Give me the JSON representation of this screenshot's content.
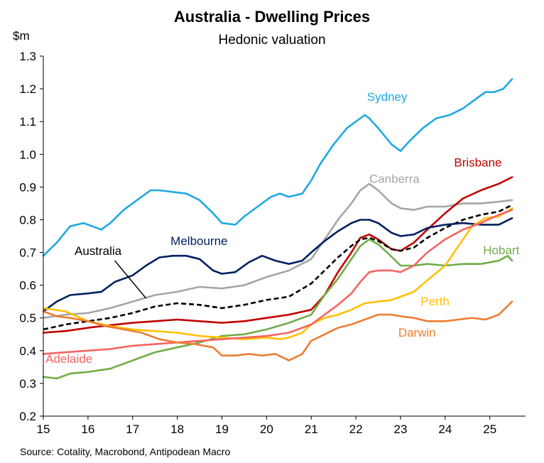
{
  "chart_data": {
    "type": "line",
    "title": "Australia - Dwelling Prices",
    "subtitle": "Hedonic valuation",
    "ylabel": "$m",
    "xlabel": "",
    "source": "Source: Cotality, Macrobond, Antipodean Macro",
    "ylim": [
      0.2,
      1.3
    ],
    "xlim": [
      15,
      25.8
    ],
    "yticks": [
      "0.2",
      "0.3",
      "0.4",
      "0.5",
      "0.6",
      "0.7",
      "0.8",
      "0.9",
      "1.0",
      "1.1",
      "1.2",
      "1.3"
    ],
    "xticks": [
      "15",
      "16",
      "17",
      "18",
      "19",
      "20",
      "21",
      "22",
      "23",
      "24",
      "25"
    ],
    "grid": false,
    "series": [
      {
        "name": "Sydney",
        "color": "#1FA9E1",
        "dashed": false,
        "x": [
          15,
          15.3,
          15.6,
          15.9,
          16.1,
          16.3,
          16.5,
          16.8,
          17.1,
          17.4,
          17.6,
          17.9,
          18.2,
          18.5,
          18.8,
          19.0,
          19.3,
          19.5,
          19.8,
          20.1,
          20.3,
          20.5,
          20.8,
          21.0,
          21.2,
          21.5,
          21.8,
          22.0,
          22.2,
          22.3,
          22.5,
          22.8,
          23.0,
          23.2,
          23.5,
          23.8,
          24.1,
          24.4,
          24.7,
          24.9,
          25.1,
          25.3,
          25.5
        ],
        "y": [
          0.69,
          0.73,
          0.78,
          0.79,
          0.78,
          0.77,
          0.79,
          0.83,
          0.86,
          0.89,
          0.89,
          0.885,
          0.88,
          0.86,
          0.82,
          0.79,
          0.785,
          0.81,
          0.84,
          0.87,
          0.88,
          0.87,
          0.88,
          0.92,
          0.97,
          1.03,
          1.08,
          1.1,
          1.12,
          1.11,
          1.08,
          1.03,
          1.01,
          1.04,
          1.08,
          1.11,
          1.12,
          1.14,
          1.17,
          1.19,
          1.19,
          1.2,
          1.23
        ]
      },
      {
        "name": "Canberra",
        "color": "#A6A6A6",
        "dashed": false,
        "x": [
          15,
          15.5,
          16,
          16.5,
          17,
          17.5,
          18,
          18.5,
          19,
          19.5,
          20,
          20.5,
          21,
          21.3,
          21.6,
          21.9,
          22.1,
          22.3,
          22.5,
          22.8,
          23.0,
          23.3,
          23.6,
          24.0,
          24.4,
          24.8,
          25.2,
          25.5
        ],
        "y": [
          0.5,
          0.51,
          0.515,
          0.53,
          0.55,
          0.57,
          0.58,
          0.595,
          0.59,
          0.6,
          0.625,
          0.645,
          0.68,
          0.74,
          0.8,
          0.85,
          0.89,
          0.91,
          0.89,
          0.85,
          0.835,
          0.83,
          0.84,
          0.84,
          0.85,
          0.85,
          0.855,
          0.86
        ]
      },
      {
        "name": "Brisbane",
        "color": "#C00000",
        "dashed": false,
        "x": [
          15,
          15.5,
          16,
          16.5,
          17,
          17.5,
          18,
          18.5,
          19,
          19.5,
          20,
          20.5,
          21,
          21.3,
          21.6,
          21.9,
          22.1,
          22.3,
          22.5,
          22.8,
          23.0,
          23.3,
          23.6,
          24.0,
          24.4,
          24.8,
          25.2,
          25.5
        ],
        "y": [
          0.455,
          0.46,
          0.47,
          0.478,
          0.485,
          0.49,
          0.495,
          0.49,
          0.485,
          0.49,
          0.5,
          0.51,
          0.525,
          0.57,
          0.64,
          0.7,
          0.745,
          0.755,
          0.74,
          0.71,
          0.705,
          0.73,
          0.77,
          0.82,
          0.865,
          0.89,
          0.91,
          0.93
        ]
      },
      {
        "name": "Australia",
        "color": "#000000",
        "dashed": true,
        "x": [
          15,
          15.5,
          16,
          16.5,
          17,
          17.5,
          18,
          18.5,
          19,
          19.5,
          20,
          20.5,
          21,
          21.3,
          21.6,
          21.9,
          22.1,
          22.3,
          22.5,
          22.8,
          23.0,
          23.3,
          23.6,
          24.0,
          24.4,
          24.8,
          25.2,
          25.5
        ],
        "y": [
          0.465,
          0.48,
          0.49,
          0.5,
          0.515,
          0.535,
          0.545,
          0.54,
          0.53,
          0.54,
          0.555,
          0.565,
          0.605,
          0.645,
          0.685,
          0.72,
          0.74,
          0.745,
          0.735,
          0.71,
          0.705,
          0.715,
          0.745,
          0.775,
          0.8,
          0.815,
          0.825,
          0.845
        ]
      },
      {
        "name": "Melbourne",
        "color": "#002060",
        "dashed": false,
        "x": [
          15,
          15.3,
          15.6,
          16.0,
          16.3,
          16.6,
          17.0,
          17.3,
          17.6,
          17.9,
          18.2,
          18.5,
          18.8,
          19.0,
          19.3,
          19.6,
          19.9,
          20.2,
          20.5,
          20.8,
          21.0,
          21.3,
          21.6,
          21.9,
          22.1,
          22.3,
          22.5,
          22.8,
          23.0,
          23.3,
          23.6,
          24.0,
          24.4,
          24.8,
          25.2,
          25.5
        ],
        "y": [
          0.52,
          0.55,
          0.57,
          0.575,
          0.58,
          0.61,
          0.63,
          0.66,
          0.685,
          0.69,
          0.69,
          0.68,
          0.645,
          0.635,
          0.64,
          0.67,
          0.69,
          0.675,
          0.665,
          0.675,
          0.7,
          0.735,
          0.765,
          0.79,
          0.8,
          0.8,
          0.79,
          0.76,
          0.75,
          0.755,
          0.775,
          0.785,
          0.79,
          0.785,
          0.785,
          0.805
        ]
      },
      {
        "name": "Hobart",
        "color": "#70AD47",
        "dashed": false,
        "x": [
          15,
          15.3,
          15.6,
          16.0,
          16.5,
          17.0,
          17.5,
          18.0,
          18.5,
          19.0,
          19.5,
          20.0,
          20.5,
          21.0,
          21.3,
          21.6,
          21.9,
          22.1,
          22.3,
          22.5,
          22.7,
          23.0,
          23.3,
          23.6,
          24.0,
          24.4,
          24.8,
          25.2,
          25.4,
          25.5
        ],
        "y": [
          0.32,
          0.315,
          0.33,
          0.335,
          0.345,
          0.37,
          0.395,
          0.41,
          0.425,
          0.445,
          0.45,
          0.465,
          0.485,
          0.51,
          0.57,
          0.62,
          0.68,
          0.72,
          0.74,
          0.725,
          0.7,
          0.66,
          0.66,
          0.665,
          0.66,
          0.665,
          0.665,
          0.675,
          0.69,
          0.675
        ]
      },
      {
        "name": "Perth",
        "color": "#FFC000",
        "dashed": false,
        "x": [
          15,
          15.5,
          16,
          16.5,
          17,
          17.5,
          18,
          18.5,
          19,
          19.5,
          20,
          20.3,
          20.5,
          20.8,
          21.0,
          21.3,
          21.6,
          21.9,
          22.2,
          22.5,
          22.8,
          23.0,
          23.3,
          23.6,
          24.0,
          24.3,
          24.6,
          24.9,
          25.2,
          25.5
        ],
        "y": [
          0.53,
          0.52,
          0.49,
          0.475,
          0.465,
          0.46,
          0.455,
          0.445,
          0.44,
          0.435,
          0.44,
          0.435,
          0.44,
          0.455,
          0.48,
          0.5,
          0.51,
          0.525,
          0.545,
          0.55,
          0.555,
          0.565,
          0.58,
          0.615,
          0.66,
          0.72,
          0.78,
          0.805,
          0.81,
          0.835
        ]
      },
      {
        "name": "Adelaide",
        "color": "#F4645F",
        "dashed": false,
        "x": [
          15,
          15.5,
          16,
          16.5,
          17,
          17.5,
          18,
          18.5,
          19,
          19.5,
          20,
          20.5,
          21,
          21.3,
          21.6,
          21.9,
          22.1,
          22.3,
          22.5,
          22.8,
          23.0,
          23.3,
          23.6,
          24.0,
          24.4,
          24.8,
          25.2,
          25.5
        ],
        "y": [
          0.39,
          0.395,
          0.4,
          0.405,
          0.415,
          0.42,
          0.425,
          0.43,
          0.435,
          0.44,
          0.445,
          0.455,
          0.48,
          0.51,
          0.54,
          0.575,
          0.61,
          0.64,
          0.645,
          0.645,
          0.64,
          0.66,
          0.7,
          0.74,
          0.77,
          0.79,
          0.815,
          0.83
        ]
      },
      {
        "name": "Darwin",
        "color": "#ED7D31",
        "dashed": false,
        "x": [
          15,
          15.3,
          15.6,
          16.0,
          16.4,
          16.8,
          17.2,
          17.6,
          18.0,
          18.4,
          18.8,
          19.0,
          19.3,
          19.6,
          19.9,
          20.2,
          20.5,
          20.8,
          21.0,
          21.3,
          21.6,
          21.9,
          22.2,
          22.5,
          22.8,
          23.0,
          23.3,
          23.6,
          24.0,
          24.3,
          24.6,
          24.9,
          25.2,
          25.5
        ],
        "y": [
          0.52,
          0.505,
          0.5,
          0.49,
          0.475,
          0.465,
          0.455,
          0.435,
          0.425,
          0.42,
          0.41,
          0.385,
          0.385,
          0.39,
          0.385,
          0.39,
          0.37,
          0.39,
          0.43,
          0.45,
          0.47,
          0.48,
          0.495,
          0.51,
          0.51,
          0.505,
          0.5,
          0.49,
          0.49,
          0.495,
          0.5,
          0.495,
          0.51,
          0.55
        ]
      }
    ]
  }
}
